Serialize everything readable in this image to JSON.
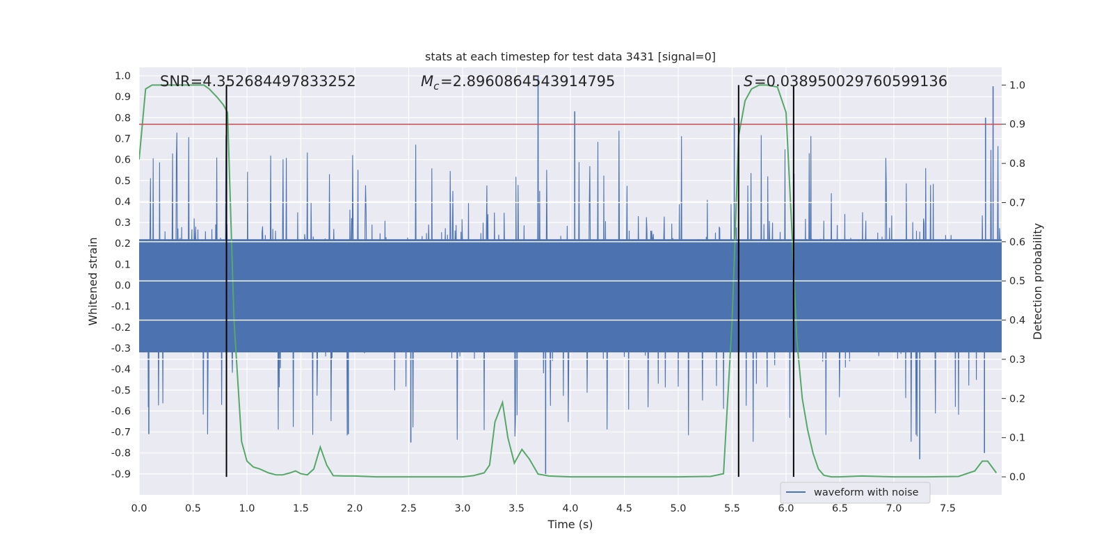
{
  "chart_data": {
    "type": "line",
    "title": "stats at each timestep for test data 3431 [signal=0]",
    "xlabel": "Time (s)",
    "ylabel": "Whitened strain",
    "y2label": "Detection probability",
    "xlim": [
      0,
      8.0
    ],
    "ylim": [
      -1.0,
      1.04
    ],
    "y2lim": [
      -0.046,
      1.045
    ],
    "grid": true,
    "legend_position": "lower-right",
    "x_ticks": [
      "0.0",
      "0.5",
      "1.0",
      "1.5",
      "2.0",
      "2.5",
      "3.0",
      "3.5",
      "4.0",
      "4.5",
      "5.0",
      "5.5",
      "6.0",
      "6.5",
      "7.0",
      "7.5"
    ],
    "y_ticks": [
      "-0.9",
      "-0.8",
      "-0.7",
      "-0.6",
      "-0.5",
      "-0.4",
      "-0.3",
      "-0.2",
      "-0.1",
      "0.0",
      "0.1",
      "0.2",
      "0.3",
      "0.4",
      "0.5",
      "0.6",
      "0.7",
      "0.8",
      "0.9",
      "1.0"
    ],
    "y2_ticks": [
      "0.0",
      "0.1",
      "0.2",
      "0.3",
      "0.4",
      "0.5",
      "0.6",
      "0.7",
      "0.8",
      "0.9",
      "1.0"
    ],
    "annotations": {
      "snr_label": "SNR=4.352684497833252",
      "mc_label": "=2.8960864543914795",
      "s_label": "=0.038950029760599136"
    },
    "series": [
      {
        "name": "waveform with noise",
        "axis": "left",
        "color": "#4c72b0",
        "description_envelope": "dense whitened noise, core about ±0.35, peaks up to about ±0.75",
        "spikes": [
          {
            "x": 3.7,
            "y": 1.0
          },
          {
            "x": 4.04,
            "y": 0.83
          },
          {
            "x": 7.92,
            "y": 0.95
          },
          {
            "x": 5.52,
            "y": 0.8
          },
          {
            "x": 7.85,
            "y": 0.8
          },
          {
            "x": 1.94,
            "y": -0.71
          },
          {
            "x": 2.52,
            "y": -0.75
          },
          {
            "x": 0.09,
            "y": -0.71
          },
          {
            "x": 7.24,
            "y": -0.83
          },
          {
            "x": 7.84,
            "y": -0.8
          },
          {
            "x": 3.77,
            "y": -0.9
          }
        ]
      },
      {
        "name": "",
        "axis": "right",
        "color": "#55a868",
        "x": [
          0.0,
          0.06,
          0.12,
          0.2,
          0.3,
          0.4,
          0.5,
          0.6,
          0.65,
          0.72,
          0.78,
          0.82,
          0.88,
          0.95,
          1.0,
          1.06,
          1.12,
          1.2,
          1.27,
          1.33,
          1.4,
          1.45,
          1.5,
          1.56,
          1.62,
          1.68,
          1.74,
          1.8,
          1.9,
          2.0,
          2.2,
          2.5,
          2.8,
          3.0,
          3.1,
          3.2,
          3.25,
          3.3,
          3.37,
          3.42,
          3.48,
          3.55,
          3.62,
          3.7,
          3.8,
          4.0,
          4.5,
          5.0,
          5.3,
          5.42,
          5.5,
          5.56,
          5.62,
          5.68,
          5.75,
          5.82,
          5.92,
          6.0,
          6.05,
          6.1,
          6.15,
          6.2,
          6.25,
          6.3,
          6.35,
          6.42,
          6.5,
          6.7,
          7.0,
          7.3,
          7.6,
          7.75,
          7.82,
          7.87,
          7.95
        ],
        "y": [
          0.81,
          0.99,
          1.0,
          1.0,
          1.0,
          1.0,
          1.0,
          1.0,
          0.99,
          0.97,
          0.95,
          0.93,
          0.4,
          0.09,
          0.04,
          0.025,
          0.02,
          0.01,
          0.005,
          0.005,
          0.01,
          0.015,
          0.008,
          0.005,
          0.02,
          0.076,
          0.03,
          0.003,
          0.002,
          0.002,
          0.0,
          0.0,
          0.0,
          0.0,
          0.003,
          0.01,
          0.03,
          0.14,
          0.19,
          0.1,
          0.035,
          0.07,
          0.045,
          0.007,
          0.002,
          0.0,
          0.0,
          0.0,
          0.001,
          0.008,
          0.4,
          0.87,
          0.96,
          0.99,
          1.0,
          1.0,
          0.995,
          0.93,
          0.65,
          0.35,
          0.2,
          0.12,
          0.06,
          0.02,
          0.004,
          0.0,
          0.0,
          0.002,
          0.0,
          0.0,
          0.001,
          0.015,
          0.04,
          0.04,
          0.01
        ]
      }
    ],
    "hlines": [
      {
        "axis": "right",
        "y": 0.9,
        "color": "#c44e52"
      }
    ],
    "vlines": [
      {
        "x": 0.81,
        "color": "#000000"
      },
      {
        "x": 5.56,
        "color": "#000000"
      },
      {
        "x": 6.07,
        "color": "#000000"
      }
    ]
  }
}
